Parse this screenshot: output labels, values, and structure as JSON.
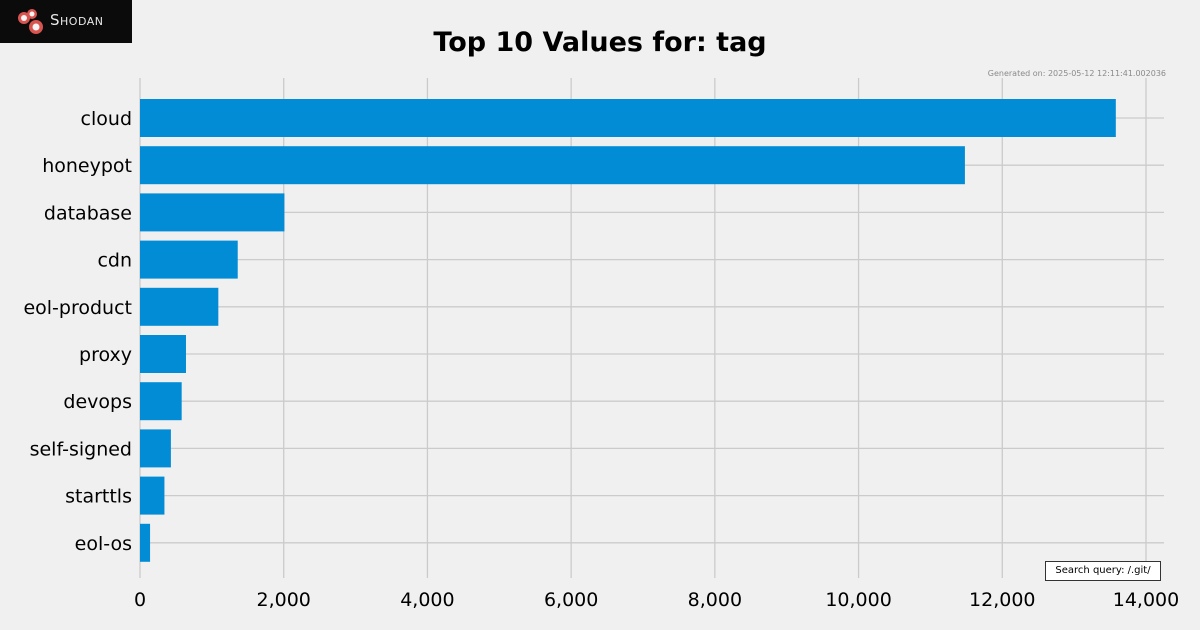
{
  "logo": {
    "text": "Shodan",
    "icon": "shodan-logo-icon",
    "background": "#0b0b0b",
    "icon_color": "#d9534f"
  },
  "generated_text": "Generated on: 2025-05-12 12:11:41.002036",
  "search_query_text": "Search query: /.git/",
  "chart_data": {
    "type": "bar",
    "orientation": "horizontal",
    "title": "Top 10 Values for: tag",
    "xlabel": "",
    "ylabel": "",
    "categories": [
      "cloud",
      "honeypot",
      "database",
      "cdn",
      "eol-product",
      "proxy",
      "devops",
      "self-signed",
      "starttls",
      "eol-os"
    ],
    "values": [
      13580,
      11480,
      2010,
      1360,
      1090,
      640,
      580,
      430,
      340,
      140
    ],
    "xlim": [
      0,
      14000
    ],
    "xticks": [
      0,
      2000,
      4000,
      6000,
      8000,
      10000,
      12000,
      14000
    ],
    "xtick_labels": [
      "0",
      "2,000",
      "4,000",
      "6,000",
      "8,000",
      "10,000",
      "12,000",
      "14,000"
    ],
    "grid": true,
    "bar_color": "#038cd6",
    "grid_color": "#cbcbcb",
    "background": "#f0f0f0"
  }
}
